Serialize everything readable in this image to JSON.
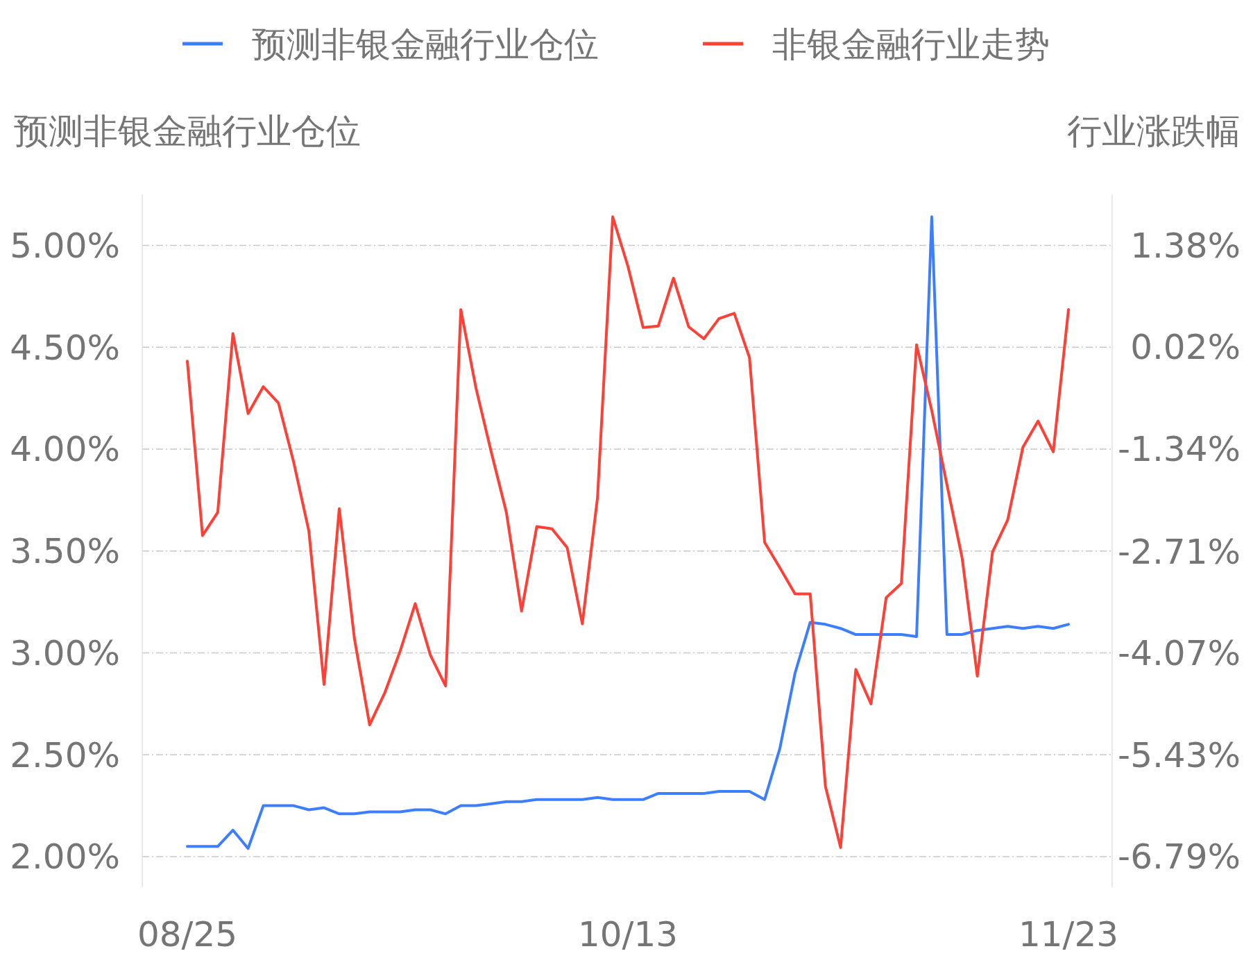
{
  "chart_data": {
    "type": "line",
    "ylabel": "预测非银金融行业仓位",
    "y2label": "行业涨跌幅",
    "categories": [
      "08/25",
      null,
      null,
      null,
      null,
      null,
      null,
      null,
      null,
      null,
      null,
      null,
      null,
      null,
      null,
      null,
      null,
      null,
      null,
      null,
      null,
      null,
      null,
      null,
      null,
      null,
      null,
      null,
      null,
      "10/13",
      null,
      null,
      null,
      null,
      null,
      null,
      null,
      null,
      null,
      null,
      null,
      null,
      null,
      null,
      null,
      null,
      null,
      null,
      null,
      null,
      null,
      null,
      null,
      null,
      null,
      null,
      null,
      null,
      "11/23"
    ],
    "series": [
      {
        "name": "预测非银金融行业仓位",
        "color": "#3d7eff",
        "values": [
          2.05,
          2.05,
          2.05,
          2.13,
          2.04,
          2.25,
          2.25,
          2.25,
          2.23,
          2.24,
          2.21,
          2.21,
          2.22,
          2.22,
          2.22,
          2.23,
          2.23,
          2.21,
          2.25,
          2.25,
          2.26,
          2.27,
          2.27,
          2.28,
          2.28,
          2.28,
          2.28,
          2.29,
          2.28,
          2.28,
          2.28,
          2.31,
          2.31,
          2.31,
          2.31,
          2.32,
          2.32,
          2.32,
          2.28,
          2.53,
          2.9,
          3.15,
          3.14,
          3.12,
          3.09,
          3.09,
          3.09,
          3.09,
          3.08,
          5.14,
          3.09,
          3.09,
          3.11,
          3.12,
          3.13,
          3.12,
          3.13,
          3.12,
          3.14
        ]
      },
      {
        "name": "非银金融行业走势",
        "color": "#ff4037",
        "axis": "y2",
        "values": [
          -0.17,
          -2.5,
          -2.19,
          0.2,
          -0.87,
          -0.51,
          -0.73,
          -1.52,
          -2.44,
          -4.49,
          -2.14,
          -3.88,
          -5.03,
          -4.6,
          -4.05,
          -3.41,
          -4.1,
          -4.51,
          0.52,
          -0.53,
          -1.38,
          -2.19,
          -3.51,
          -2.38,
          -2.41,
          -2.66,
          -3.68,
          -1.99,
          1.76,
          1.1,
          0.28,
          0.3,
          0.94,
          0.29,
          0.13,
          0.4,
          0.47,
          -0.12,
          -2.59,
          -2.93,
          -3.28,
          -3.28,
          -5.85,
          -6.67,
          -4.29,
          -4.75,
          -3.33,
          -3.14,
          0.05,
          -0.83,
          -1.82,
          -2.8,
          -4.38,
          -2.72,
          -2.29,
          -1.32,
          -0.97,
          -1.38,
          0.52
        ]
      }
    ],
    "ylim": [
      1.85,
      5.25
    ],
    "yticks": [
      {
        "value": 2,
        "label": "2.00%"
      },
      {
        "value": 2.5,
        "label": "2.50%"
      },
      {
        "value": 3,
        "label": "3.00%"
      },
      {
        "value": 3.5,
        "label": "3.50%"
      },
      {
        "value": 4,
        "label": "4.00%"
      },
      {
        "value": 4.5,
        "label": "4.50%"
      },
      {
        "value": 5,
        "label": "5.00%"
      }
    ],
    "y2lim": [
      -7.2,
      2.06
    ],
    "y2ticks": [
      {
        "value": -6.79,
        "label": "-6.79%"
      },
      {
        "value": -5.43,
        "label": "-5.43%"
      },
      {
        "value": -4.07,
        "label": "-4.07%"
      },
      {
        "value": -2.71,
        "label": "-2.71%"
      },
      {
        "value": -1.34,
        "label": "-1.34%"
      },
      {
        "value": 0.02,
        "label": "0.02%"
      },
      {
        "value": 1.38,
        "label": "1.38%"
      }
    ],
    "grid": "y",
    "legend": "top",
    "marker": "none",
    "line_style": "solid"
  }
}
